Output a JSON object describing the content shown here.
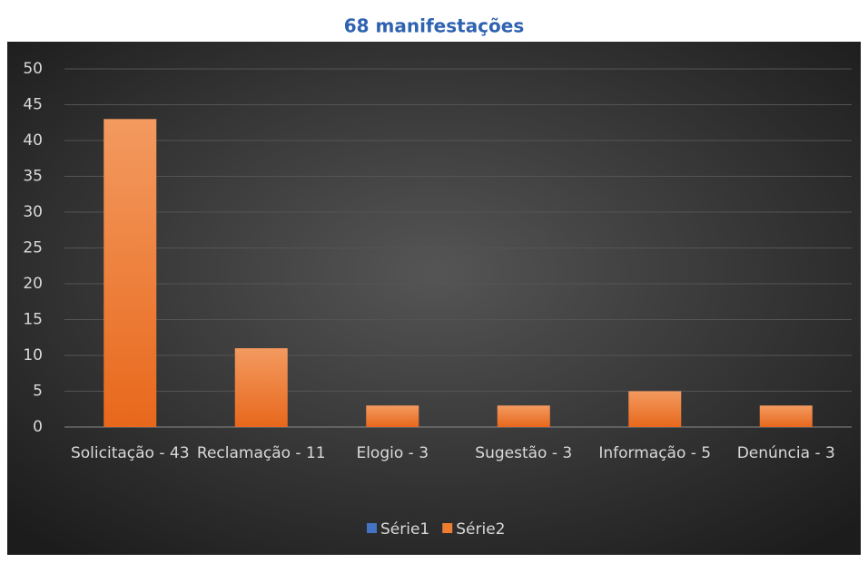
{
  "chart_data": {
    "type": "bar",
    "title": "68 manifestações",
    "categories": [
      "Solicitação - 43",
      "Reclamação - 11",
      "Elogio - 3",
      "Sugestão - 3",
      "Informação - 5",
      "Denúncia - 3"
    ],
    "series": [
      {
        "name": "Série1",
        "color": "#4472c4",
        "values": [
          null,
          null,
          null,
          null,
          null,
          null
        ]
      },
      {
        "name": "Série2",
        "color": "#ed7d31",
        "values": [
          43,
          11,
          3,
          3,
          5,
          3
        ]
      }
    ],
    "ylim": [
      0,
      50
    ],
    "yticks": [
      0,
      5,
      10,
      15,
      20,
      25,
      30,
      35,
      40,
      45,
      50
    ],
    "grid": true,
    "legend": "bottom"
  }
}
